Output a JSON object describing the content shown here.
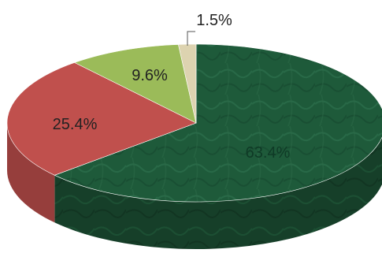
{
  "chart_data": {
    "type": "pie",
    "title": "",
    "slices": [
      {
        "label": "63.4%",
        "value": 63.4,
        "color": "#1f5a3b"
      },
      {
        "label": "25.4%",
        "value": 25.4,
        "color": "#c0504d"
      },
      {
        "label": "9.6%",
        "value": 9.6,
        "color": "#9bbb59"
      },
      {
        "label": "1.5%",
        "value": 1.5,
        "color": "#ddd3b0"
      }
    ],
    "three_d": true,
    "legend": "none"
  }
}
